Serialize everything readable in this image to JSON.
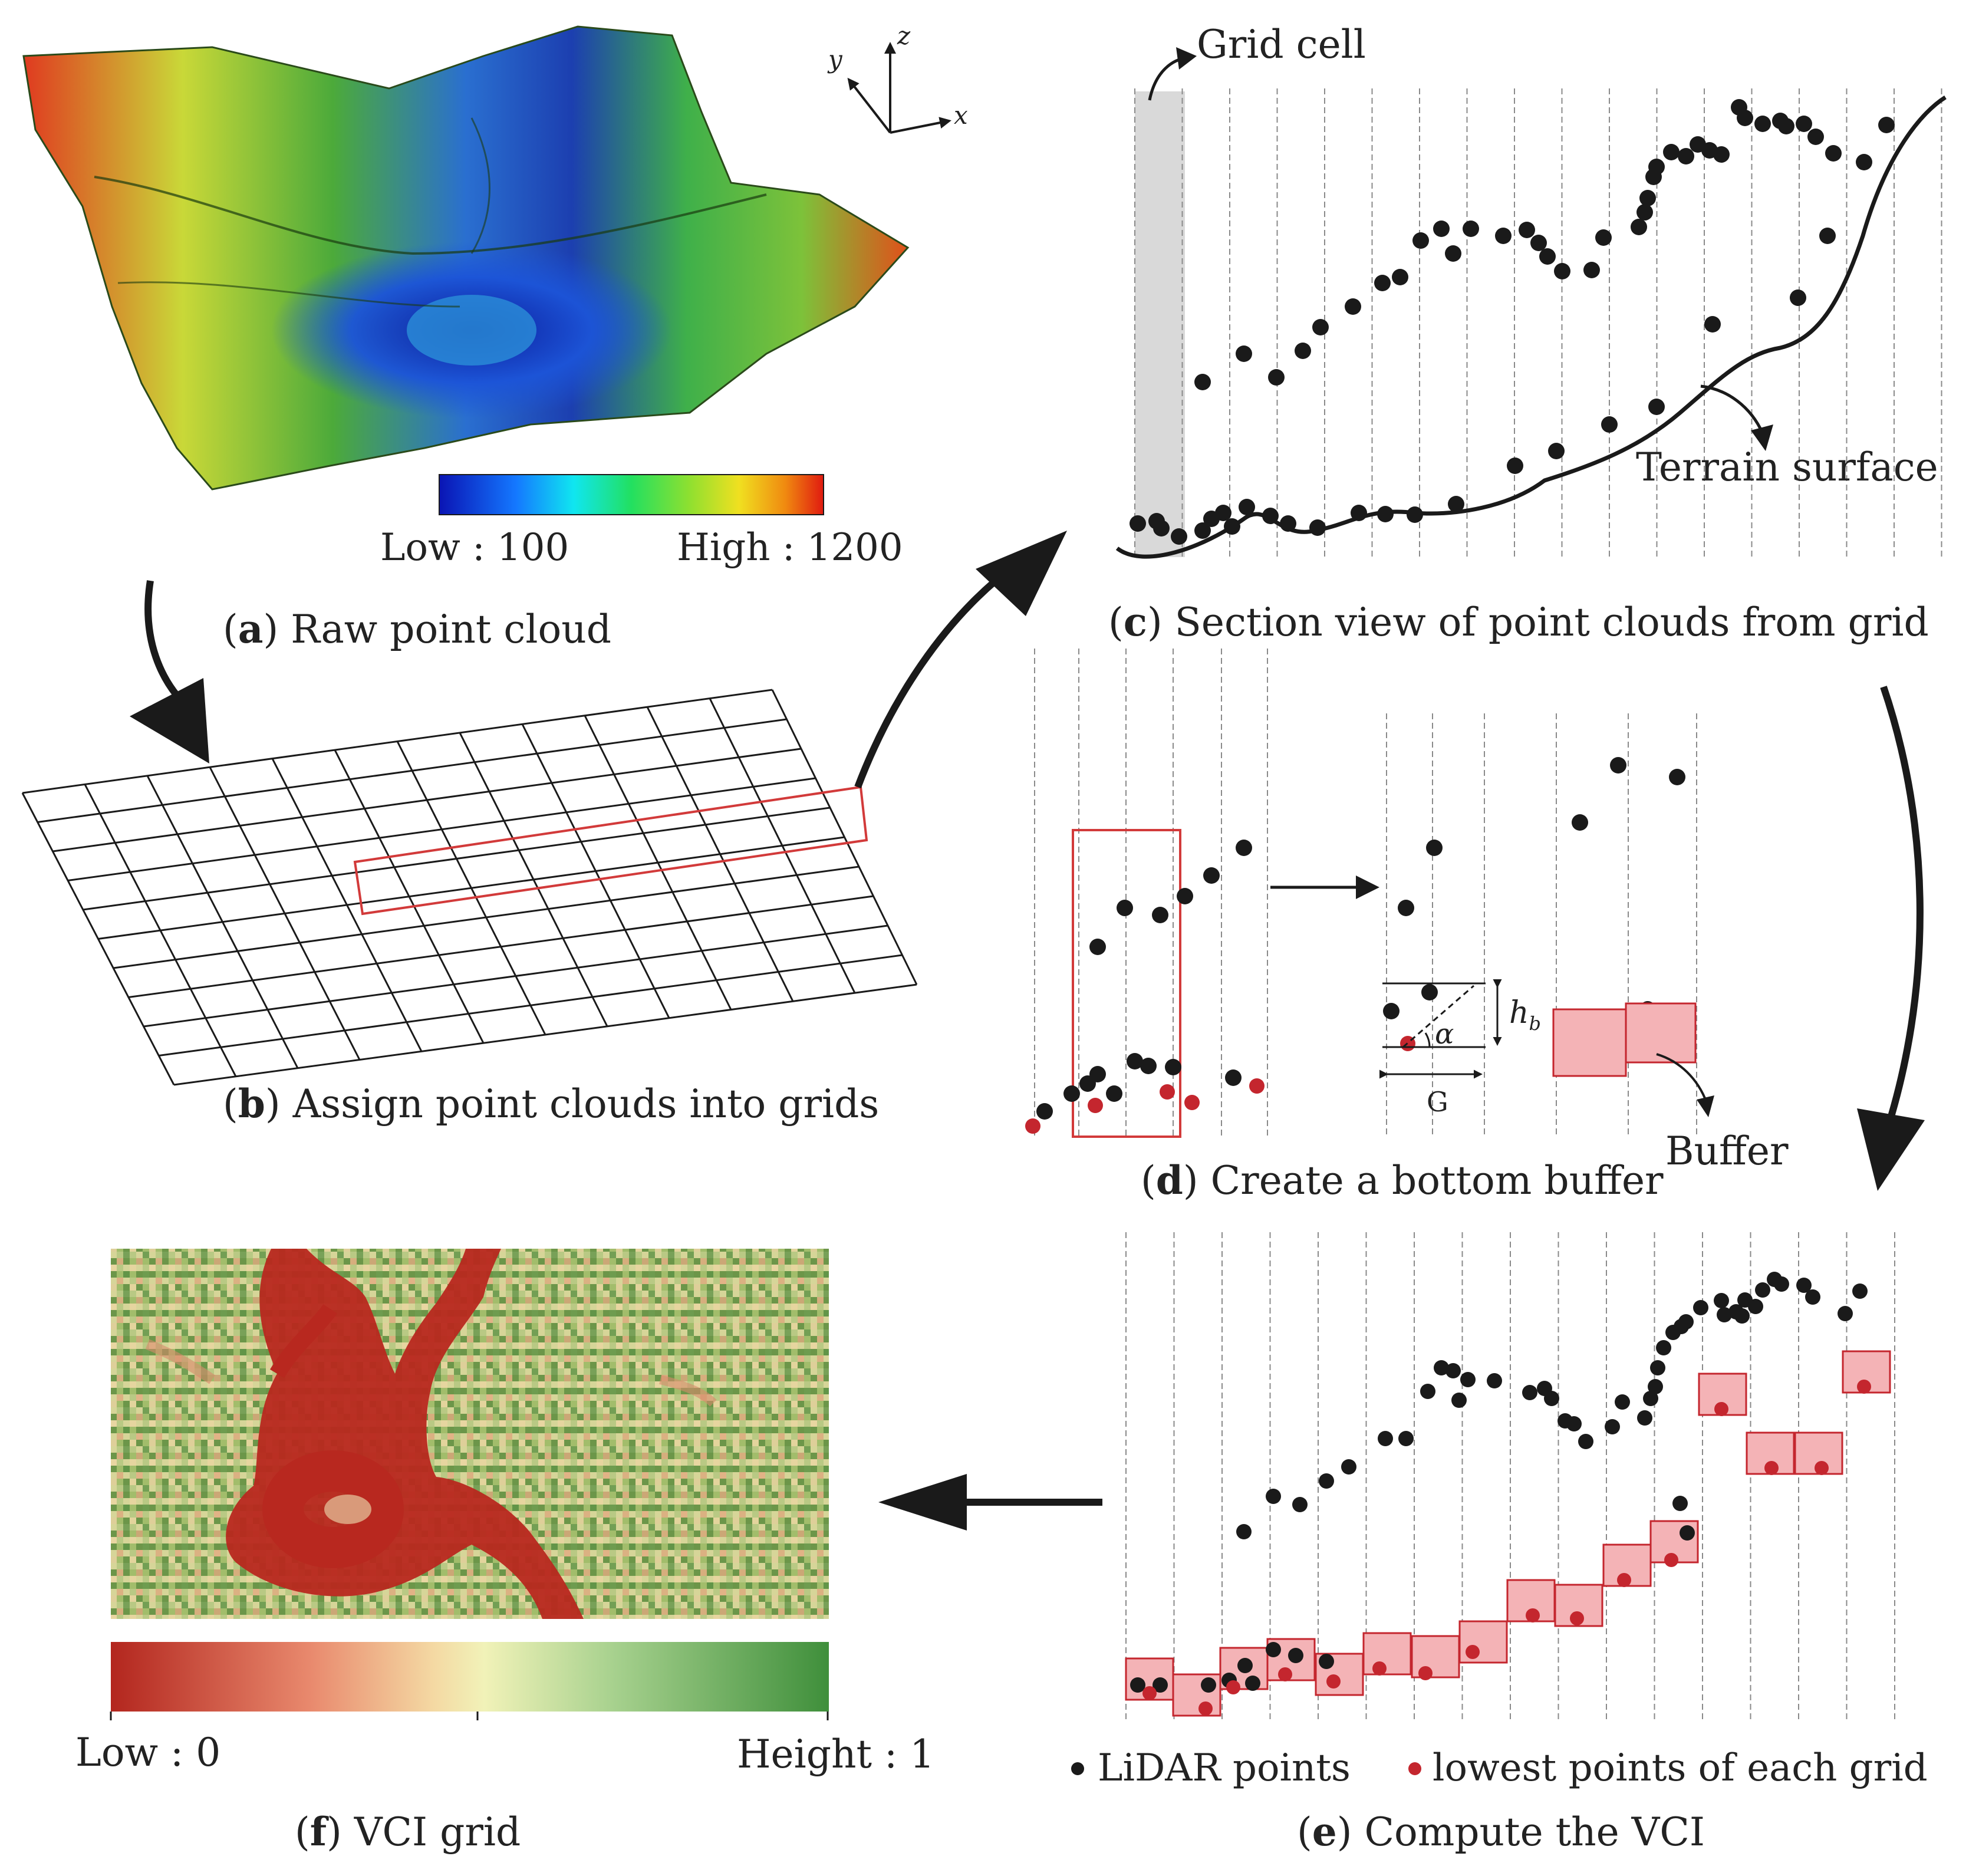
{
  "figure": {
    "panel_a": {
      "letter": "a",
      "caption": "Raw point cloud",
      "colorbar": {
        "low": "Low : 100",
        "high": "High : 1200"
      },
      "axes": {
        "x": "x",
        "y": "y",
        "z": "z"
      }
    },
    "panel_b": {
      "letter": "b",
      "caption": "Assign point clouds into grids"
    },
    "panel_c": {
      "letter": "c",
      "caption": "Section view of point clouds from grid",
      "grid_cell_label": "Grid cell",
      "terrain_label": "Terrain surface"
    },
    "panel_d": {
      "letter": "d",
      "caption": "Create a bottom buffer",
      "hb_label": "h",
      "hb_sub": "b",
      "alpha_label": "α",
      "g_label": "G",
      "buffer_label": "Buffer"
    },
    "panel_e": {
      "letter": "e",
      "caption": "Compute the VCI",
      "legend_lidar": "LiDAR points",
      "legend_lowest": "lowest points of each grid"
    },
    "panel_f": {
      "letter": "f",
      "caption": "VCI grid",
      "colorbar": {
        "low": "Low :  0",
        "high": "Height : 1"
      }
    }
  },
  "colors": {
    "lidar_point": "#1a1a1a",
    "lowest_point": "#c4262e",
    "buffer_fill": "#f4b3b6",
    "buffer_stroke": "#c4262e",
    "selection_box": "#d23a3a",
    "vci_low": "#b3261e",
    "vci_mid": "#f3efb3",
    "vci_high": "#3f8f3b"
  }
}
